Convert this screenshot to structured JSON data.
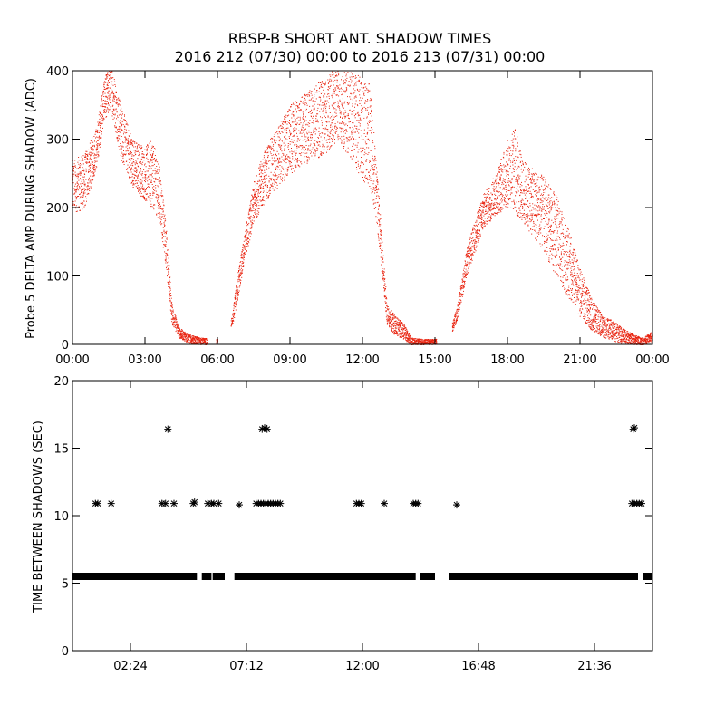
{
  "chart_data": [
    {
      "type": "scatter",
      "title": "RBSP-B SHORT ANT. SHADOW TIMES",
      "subtitle": "2016 212 (07/30) 00:00 to 2016 213 (07/31) 00:00",
      "xlabel": "",
      "ylabel": "Probe 5 DELTA AMP DURING SHADOW (ADC)",
      "x_unit": "hours",
      "xlim": [
        0,
        24
      ],
      "ylim": [
        0,
        400
      ],
      "xticks": [
        0,
        3,
        6,
        9,
        12,
        15,
        18,
        21,
        24
      ],
      "xtick_labels": [
        "00:00",
        "03:00",
        "06:00",
        "09:00",
        "12:00",
        "15:00",
        "18:00",
        "21:00",
        "00:00"
      ],
      "yticks": [
        0,
        100,
        200,
        300,
        400
      ],
      "ytick_labels": [
        "0",
        "100",
        "200",
        "300",
        "400"
      ],
      "marker_color": "#e8230f",
      "envelope": {
        "x": [
          0.0,
          0.5,
          1.0,
          1.3,
          1.6,
          2.0,
          2.5,
          3.0,
          3.3,
          3.6,
          3.9,
          4.1,
          4.4,
          4.8,
          5.3,
          6.0,
          6.6,
          6.8,
          7.1,
          7.5,
          8.0,
          9.0,
          10.0,
          10.5,
          11.0,
          11.5,
          12.0,
          12.3,
          12.6,
          13.0,
          13.3,
          13.7,
          14.0,
          14.5,
          15.0,
          15.5,
          15.9,
          16.3,
          16.7,
          17.0,
          17.5,
          18.0,
          18.3,
          18.6,
          19.0,
          19.5,
          20.0,
          20.5,
          21.0,
          21.5,
          22.0,
          22.4,
          22.7,
          23.2,
          23.6,
          24.0
        ],
        "upper": [
          270,
          280,
          320,
          390,
          410,
          350,
          300,
          290,
          300,
          260,
          160,
          60,
          25,
          15,
          10,
          8,
          40,
          100,
          160,
          240,
          290,
          350,
          380,
          390,
          410,
          400,
          390,
          380,
          250,
          60,
          45,
          30,
          10,
          8,
          8,
          10,
          55,
          140,
          190,
          220,
          250,
          300,
          320,
          270,
          260,
          245,
          220,
          170,
          110,
          65,
          40,
          35,
          25,
          15,
          10,
          20
        ],
        "lower": [
          190,
          200,
          260,
          330,
          340,
          270,
          230,
          210,
          200,
          180,
          100,
          30,
          10,
          2,
          0,
          0,
          25,
          60,
          120,
          180,
          210,
          250,
          270,
          280,
          300,
          270,
          240,
          230,
          170,
          30,
          15,
          8,
          0,
          0,
          0,
          3,
          35,
          100,
          140,
          170,
          190,
          200,
          190,
          180,
          160,
          135,
          100,
          70,
          40,
          20,
          10,
          5,
          2,
          0,
          0,
          5
        ],
        "gaps": [
          [
            5.55,
            5.95
          ],
          [
            6.0,
            6.55
          ],
          [
            15.05,
            15.7
          ]
        ]
      }
    },
    {
      "type": "scatter",
      "title": "",
      "xlabel": "",
      "ylabel": "TIME BETWEEN SHADOWS (SEC)",
      "x_unit": "hours",
      "xlim": [
        0,
        24
      ],
      "ylim": [
        0,
        20
      ],
      "xticks": [
        2.4,
        7.2,
        12.0,
        16.8,
        21.6
      ],
      "xtick_labels": [
        "02:24",
        "07:12",
        "12:00",
        "16:48",
        "21:36"
      ],
      "yticks": [
        0,
        5,
        10,
        15,
        20
      ],
      "ytick_labels": [
        "0",
        "5",
        "10",
        "15",
        "20"
      ],
      "marker": "asterisk",
      "marker_color": "#000000",
      "baseline": {
        "value": 5.5,
        "segments": [
          [
            0.0,
            5.15
          ],
          [
            5.35,
            5.75
          ],
          [
            5.8,
            6.3
          ],
          [
            6.7,
            14.2
          ],
          [
            14.4,
            15.0
          ],
          [
            15.6,
            23.4
          ],
          [
            23.6,
            24.0
          ]
        ]
      },
      "points": [
        {
          "x": 0.95,
          "y": 10.9
        },
        {
          "x": 1.05,
          "y": 10.9
        },
        {
          "x": 1.6,
          "y": 10.9
        },
        {
          "x": 3.7,
          "y": 10.9
        },
        {
          "x": 3.85,
          "y": 10.9
        },
        {
          "x": 3.95,
          "y": 16.4
        },
        {
          "x": 4.2,
          "y": 10.9
        },
        {
          "x": 5.0,
          "y": 10.9
        },
        {
          "x": 5.05,
          "y": 11.0
        },
        {
          "x": 5.6,
          "y": 10.9
        },
        {
          "x": 5.75,
          "y": 10.9
        },
        {
          "x": 5.85,
          "y": 10.9
        },
        {
          "x": 6.05,
          "y": 10.9
        },
        {
          "x": 6.9,
          "y": 10.8
        },
        {
          "x": 7.6,
          "y": 10.9
        },
        {
          "x": 7.7,
          "y": 10.9
        },
        {
          "x": 7.8,
          "y": 10.9
        },
        {
          "x": 7.9,
          "y": 10.9
        },
        {
          "x": 7.85,
          "y": 16.4
        },
        {
          "x": 7.95,
          "y": 16.5
        },
        {
          "x": 8.0,
          "y": 10.9
        },
        {
          "x": 8.05,
          "y": 16.4
        },
        {
          "x": 8.1,
          "y": 10.9
        },
        {
          "x": 8.2,
          "y": 10.9
        },
        {
          "x": 8.3,
          "y": 10.9
        },
        {
          "x": 8.4,
          "y": 10.9
        },
        {
          "x": 8.5,
          "y": 10.9
        },
        {
          "x": 8.6,
          "y": 10.9
        },
        {
          "x": 11.75,
          "y": 10.9
        },
        {
          "x": 11.85,
          "y": 10.9
        },
        {
          "x": 11.95,
          "y": 10.9
        },
        {
          "x": 12.9,
          "y": 10.9
        },
        {
          "x": 14.1,
          "y": 10.9
        },
        {
          "x": 14.2,
          "y": 10.9
        },
        {
          "x": 14.3,
          "y": 10.9
        },
        {
          "x": 15.9,
          "y": 10.8
        },
        {
          "x": 23.2,
          "y": 16.4
        },
        {
          "x": 23.25,
          "y": 16.5
        },
        {
          "x": 23.15,
          "y": 10.9
        },
        {
          "x": 23.25,
          "y": 10.9
        },
        {
          "x": 23.35,
          "y": 10.9
        },
        {
          "x": 23.45,
          "y": 10.9
        },
        {
          "x": 23.55,
          "y": 10.9
        }
      ]
    }
  ]
}
